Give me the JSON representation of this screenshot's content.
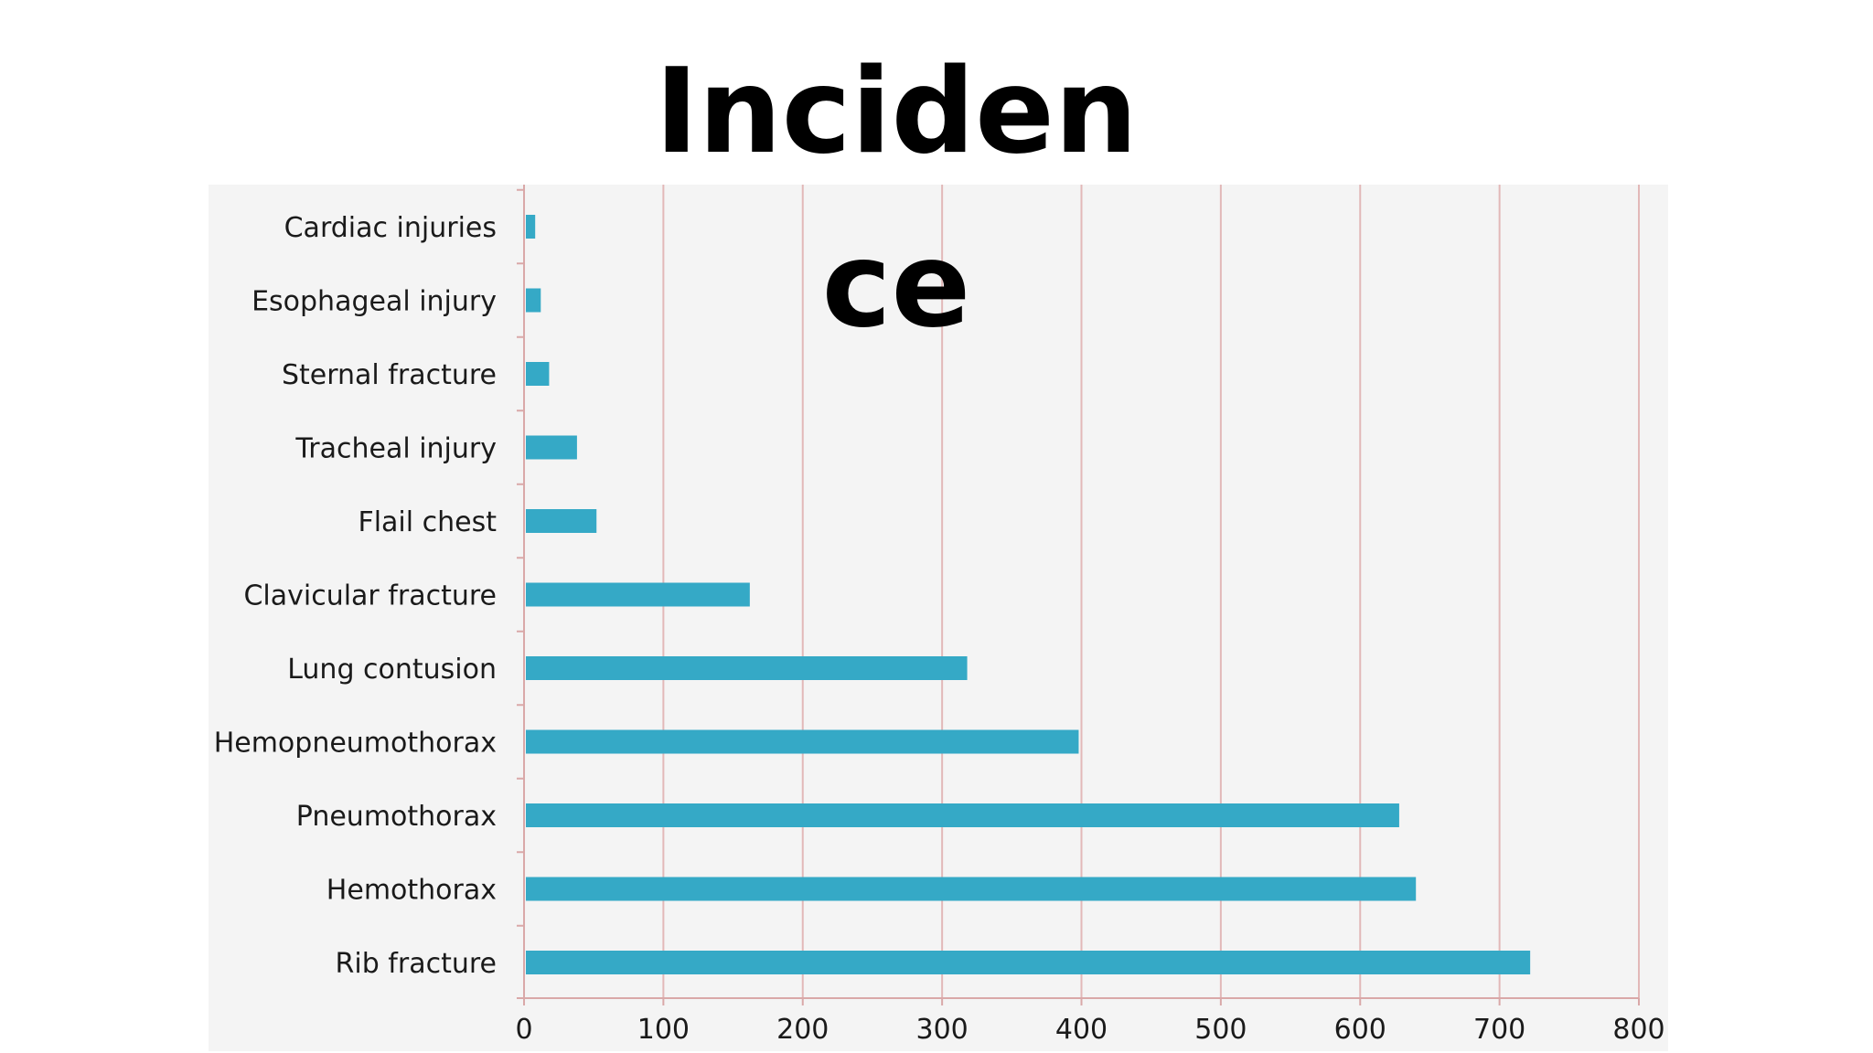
{
  "chart_data": {
    "type": "bar",
    "orientation": "horizontal",
    "title": "Incidence",
    "xlabel": "",
    "ylabel": "",
    "xlim": [
      0,
      800
    ],
    "x_ticks": [
      0,
      100,
      200,
      300,
      400,
      500,
      600,
      700,
      800
    ],
    "grid": "vertical",
    "categories": [
      "Cardiac injuries",
      "Esophageal injury",
      "Sternal fracture",
      "Tracheal injury",
      "Flail chest",
      "Clavicular fracture",
      "Lung contusion",
      "Hemopneumothorax",
      "Pneumothorax",
      "Hemothorax",
      "Rib fracture"
    ],
    "values": [
      8,
      12,
      18,
      38,
      52,
      162,
      318,
      398,
      628,
      640,
      722
    ],
    "colors": {
      "bar": "#35a9c6",
      "grid": "#e2b8b8",
      "axis": "#d9a8a8",
      "panel": "#f4f4f4",
      "text": "#1a1a1a"
    }
  }
}
